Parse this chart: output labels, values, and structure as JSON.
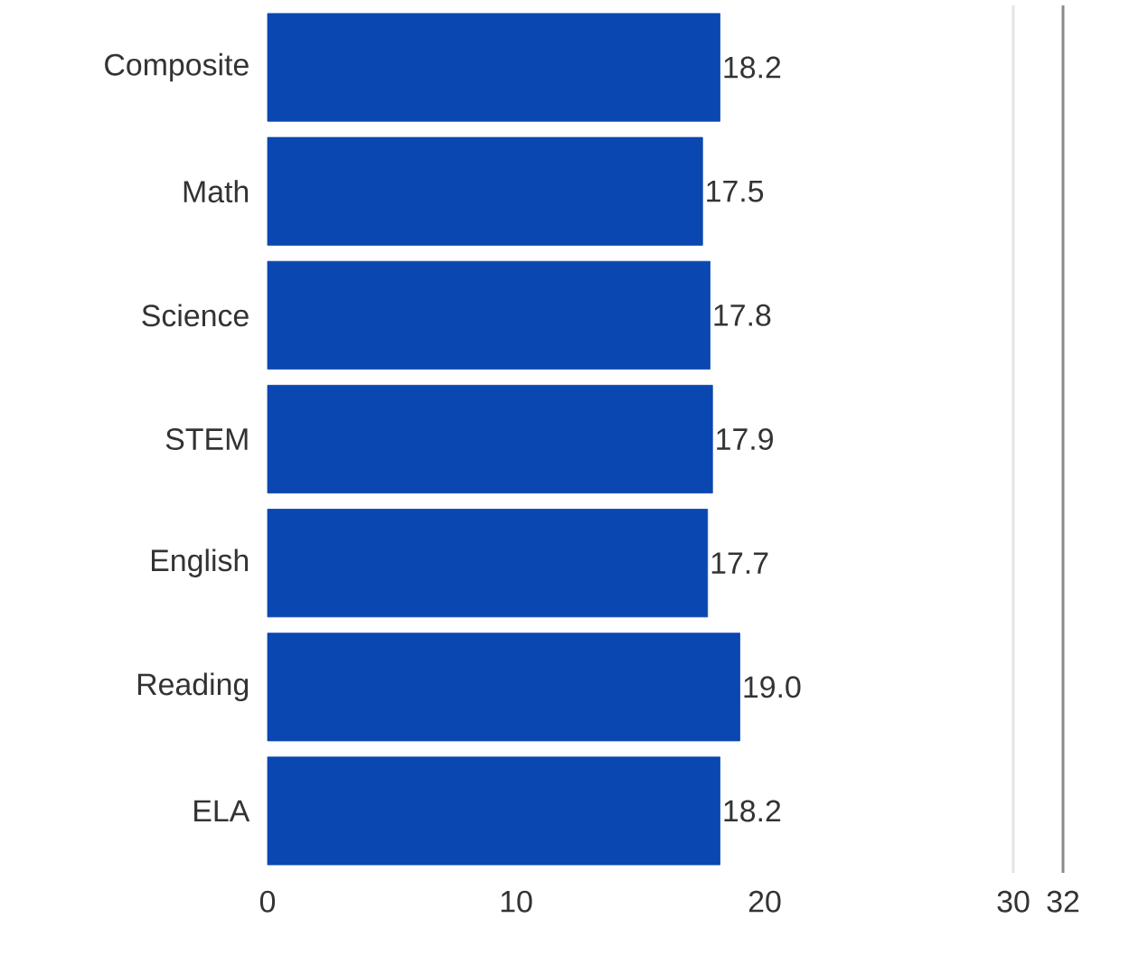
{
  "chart_data": {
    "type": "bar",
    "orientation": "horizontal",
    "categories": [
      "Composite",
      "Math",
      "Science",
      "STEM",
      "English",
      "Reading",
      "ELA"
    ],
    "values": [
      18.2,
      17.5,
      17.8,
      17.9,
      17.7,
      19.0,
      18.2
    ],
    "value_labels": [
      "18.2",
      "17.5",
      "17.8",
      "17.9",
      "17.7",
      "19.0",
      "18.2"
    ],
    "color": "#0a47b0",
    "xlim": [
      0,
      32
    ],
    "xticks": [
      0,
      10,
      20,
      30,
      32
    ],
    "ref_lines": [
      {
        "axis": "x",
        "value": 30,
        "color": "#e3e3e3"
      },
      {
        "axis": "x",
        "value": 32,
        "color": "#8a8a8a"
      }
    ]
  }
}
